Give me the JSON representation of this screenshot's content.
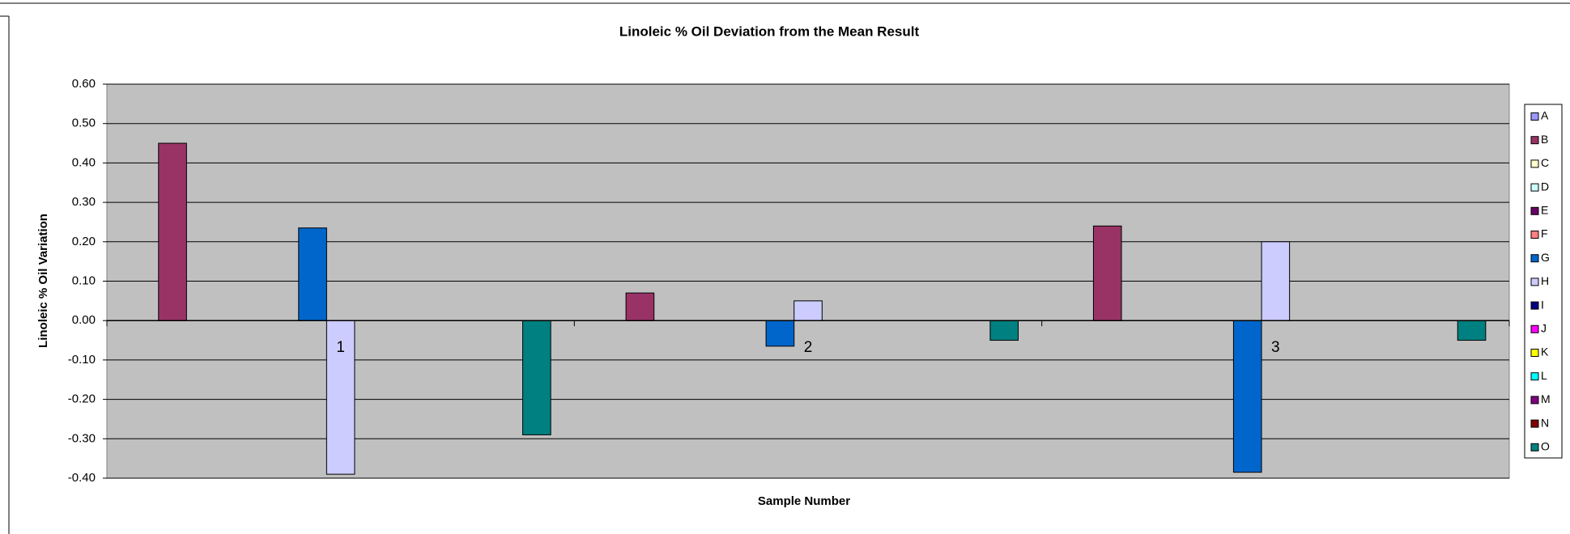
{
  "chart_data": {
    "type": "bar",
    "title": "Linoleic % Oil Deviation from the Mean Result",
    "x_label": "Sample Number",
    "y_label": "Linoleic % Oil Variation",
    "categories": [
      "1",
      "2",
      "3"
    ],
    "series": [
      {
        "name": "A",
        "color": "#9999FF",
        "values": [
          null,
          null,
          null
        ]
      },
      {
        "name": "B",
        "color": "#993366",
        "values": [
          0.45,
          0.07,
          0.24
        ]
      },
      {
        "name": "C",
        "color": "#FFFFCC",
        "values": [
          null,
          null,
          null
        ]
      },
      {
        "name": "D",
        "color": "#CCFFFF",
        "values": [
          null,
          null,
          null
        ]
      },
      {
        "name": "E",
        "color": "#660066",
        "values": [
          null,
          null,
          null
        ]
      },
      {
        "name": "F",
        "color": "#FF8080",
        "values": [
          null,
          null,
          null
        ]
      },
      {
        "name": "G",
        "color": "#0066CC",
        "values": [
          0.235,
          -0.065,
          -0.385
        ]
      },
      {
        "name": "H",
        "color": "#CCCCFF",
        "values": [
          -0.39,
          0.05,
          0.2
        ]
      },
      {
        "name": "I",
        "color": "#000080",
        "values": [
          null,
          null,
          null
        ]
      },
      {
        "name": "J",
        "color": "#FF00FF",
        "values": [
          null,
          null,
          null
        ]
      },
      {
        "name": "K",
        "color": "#FFFF00",
        "values": [
          null,
          null,
          null
        ]
      },
      {
        "name": "L",
        "color": "#00FFFF",
        "values": [
          null,
          null,
          null
        ]
      },
      {
        "name": "M",
        "color": "#800080",
        "values": [
          null,
          null,
          null
        ]
      },
      {
        "name": "N",
        "color": "#800000",
        "values": [
          null,
          null,
          null
        ]
      },
      {
        "name": "O",
        "color": "#008080",
        "values": [
          -0.29,
          -0.05,
          -0.05
        ]
      }
    ],
    "ylim": [
      -0.4,
      0.6
    ],
    "yticks": [
      {
        "value": -0.4,
        "label": "-0.40"
      },
      {
        "value": -0.3,
        "label": "-0.30"
      },
      {
        "value": -0.2,
        "label": "-0.20"
      },
      {
        "value": -0.1,
        "label": "-0.10"
      },
      {
        "value": 0,
        "label": "0.00"
      },
      {
        "value": 0.1,
        "label": "0.10"
      },
      {
        "value": 0.2,
        "label": "0.20"
      },
      {
        "value": 0.3,
        "label": "0.30"
      },
      {
        "value": 0.4,
        "label": "0.40"
      },
      {
        "value": 0.5,
        "label": "0.50"
      },
      {
        "value": 0.6,
        "label": "0.60"
      }
    ],
    "grid": true,
    "legend": "right",
    "plot_background": "#C0C0C0"
  }
}
